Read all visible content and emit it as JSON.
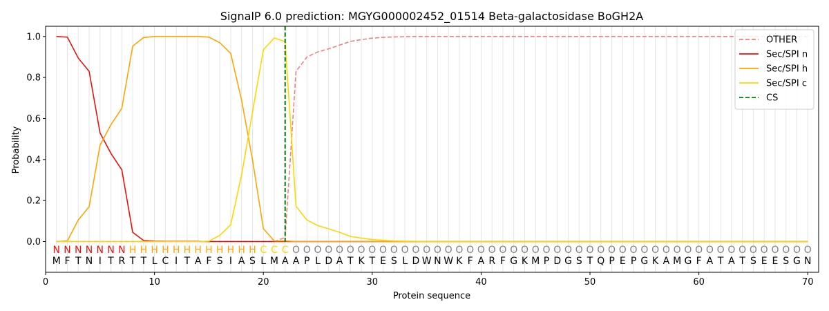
{
  "chart_data": {
    "type": "line",
    "title": "SignalP 6.0 prediction: MGYG000002452_01514 Beta-galactosidase BoGH2A",
    "xlabel": "Protein sequence",
    "ylabel": "Probability",
    "xlim": [
      0,
      71
    ],
    "ylim": [
      -0.15,
      1.05
    ],
    "xticks": [
      0,
      10,
      20,
      30,
      40,
      50,
      60,
      70
    ],
    "yticks": [
      0.0,
      0.2,
      0.4,
      0.6,
      0.8,
      1.0
    ],
    "ytick_labels": [
      "0.0",
      "0.2",
      "0.4",
      "0.6",
      "0.8",
      "1.0"
    ],
    "legend_position": "top-right",
    "x": [
      1,
      2,
      3,
      4,
      5,
      6,
      7,
      8,
      9,
      10,
      11,
      12,
      13,
      14,
      15,
      16,
      17,
      18,
      19,
      20,
      21,
      22,
      23,
      24,
      25,
      26,
      27,
      28,
      29,
      30,
      31,
      32,
      33,
      34,
      35,
      36,
      37,
      38,
      39,
      40,
      41,
      42,
      43,
      44,
      45,
      46,
      47,
      48,
      49,
      50,
      51,
      52,
      53,
      54,
      55,
      56,
      57,
      58,
      59,
      60,
      61,
      62,
      63,
      64,
      65,
      66,
      67,
      68,
      69,
      70
    ],
    "series": [
      {
        "name": "OTHER",
        "color": "#f08080",
        "dash": "dashed",
        "values": [
          0,
          0,
          0,
          0,
          0,
          0,
          0,
          0,
          0,
          0,
          0,
          0,
          0,
          0,
          0,
          0,
          0,
          0,
          0,
          0,
          0,
          0.02,
          0.83,
          0.9,
          0.925,
          0.94,
          0.958,
          0.976,
          0.985,
          0.992,
          0.996,
          0.998,
          0.999,
          1,
          1,
          1,
          1,
          1,
          1,
          1,
          1,
          1,
          1,
          1,
          1,
          1,
          1,
          1,
          1,
          1,
          1,
          1,
          1,
          1,
          1,
          1,
          1,
          1,
          1,
          1,
          1,
          1,
          1,
          1,
          1,
          1,
          1,
          1,
          1,
          1
        ]
      },
      {
        "name": "Sec/SPI n",
        "color": "#e8100c",
        "dash": "solid",
        "values": [
          1.0,
          0.997,
          0.895,
          0.83,
          0.53,
          0.43,
          0.35,
          0.045,
          0.005,
          0.002,
          0.001,
          0.001,
          0.001,
          0.001,
          0,
          0,
          0,
          0,
          0,
          0,
          0,
          0,
          0,
          0,
          0,
          0,
          0,
          0,
          0,
          0,
          0,
          0,
          0,
          0,
          0,
          0,
          0,
          0,
          0,
          0,
          0,
          0,
          0,
          0,
          0,
          0,
          0,
          0,
          0,
          0,
          0,
          0,
          0,
          0,
          0,
          0,
          0,
          0,
          0,
          0,
          0,
          0,
          0,
          0,
          0,
          0,
          0,
          0,
          0,
          0
        ]
      },
      {
        "name": "Sec/SPI h",
        "color": "#ffa500",
        "dash": "solid",
        "values": [
          0,
          0.003,
          0.105,
          0.17,
          0.47,
          0.57,
          0.65,
          0.953,
          0.995,
          1.0,
          1.0,
          1.0,
          1.0,
          1.0,
          0.997,
          0.97,
          0.918,
          0.69,
          0.4,
          0.063,
          0.003,
          0.003,
          0,
          0,
          0,
          0,
          0,
          0,
          0,
          0,
          0,
          0,
          0,
          0,
          0,
          0,
          0,
          0,
          0,
          0,
          0,
          0,
          0,
          0,
          0,
          0,
          0,
          0,
          0,
          0,
          0,
          0,
          0,
          0,
          0,
          0,
          0,
          0,
          0,
          0,
          0,
          0,
          0,
          0,
          0,
          0,
          0,
          0,
          0,
          0
        ]
      },
      {
        "name": "Sec/SPI c",
        "color": "#ffd700",
        "dash": "solid",
        "values": [
          0,
          0,
          0,
          0,
          0,
          0,
          0,
          0,
          0,
          0,
          0,
          0,
          0,
          0,
          0.002,
          0.03,
          0.082,
          0.325,
          0.63,
          0.935,
          0.993,
          0.975,
          0.172,
          0.105,
          0.078,
          0.062,
          0.045,
          0.025,
          0.017,
          0.01,
          0.006,
          0.003,
          0.002,
          0.001,
          0,
          0,
          0,
          0,
          0,
          0,
          0,
          0,
          0,
          0,
          0,
          0,
          0,
          0,
          0,
          0,
          0,
          0,
          0,
          0,
          0,
          0,
          0,
          0,
          0,
          0,
          0,
          0,
          0,
          0,
          0,
          0,
          0,
          0,
          0,
          0
        ]
      }
    ],
    "cs_marker": {
      "name": "CS",
      "x": 22,
      "color": "#007f00"
    },
    "region_labels": [
      "N",
      "N",
      "N",
      "N",
      "N",
      "N",
      "N",
      "H",
      "H",
      "H",
      "H",
      "H",
      "H",
      "H",
      "H",
      "H",
      "H",
      "H",
      "H",
      "C",
      "C",
      "C",
      "O",
      "O",
      "O",
      "O",
      "O",
      "O",
      "O",
      "O",
      "O",
      "O",
      "O",
      "O",
      "O",
      "O",
      "O",
      "O",
      "O",
      "O",
      "O",
      "O",
      "O",
      "O",
      "O",
      "O",
      "O",
      "O",
      "O",
      "O",
      "O",
      "O",
      "O",
      "O",
      "O",
      "O",
      "O",
      "O",
      "O",
      "O",
      "O",
      "O",
      "O",
      "O",
      "O",
      "O",
      "O",
      "O",
      "O",
      "O"
    ],
    "region_colors": {
      "N": "#e8100c",
      "H": "#ffa500",
      "C": "#ffd700",
      "O": "#808080"
    },
    "sequence": [
      "M",
      "F",
      "T",
      "N",
      "I",
      "T",
      "R",
      "T",
      "T",
      "L",
      "C",
      "I",
      "T",
      "A",
      "F",
      "S",
      "I",
      "A",
      "S",
      "L",
      "M",
      "A",
      "A",
      "P",
      "L",
      "D",
      "A",
      "T",
      "K",
      "T",
      "E",
      "S",
      "L",
      "D",
      "W",
      "N",
      "W",
      "K",
      "F",
      "A",
      "R",
      "F",
      "G",
      "K",
      "M",
      "P",
      "D",
      "G",
      "S",
      "T",
      "Q",
      "P",
      "E",
      "P",
      "G",
      "K",
      "A",
      "M",
      "G",
      "F",
      "A",
      "T",
      "A",
      "T",
      "S",
      "E",
      "E",
      "S",
      "G",
      "N"
    ]
  }
}
